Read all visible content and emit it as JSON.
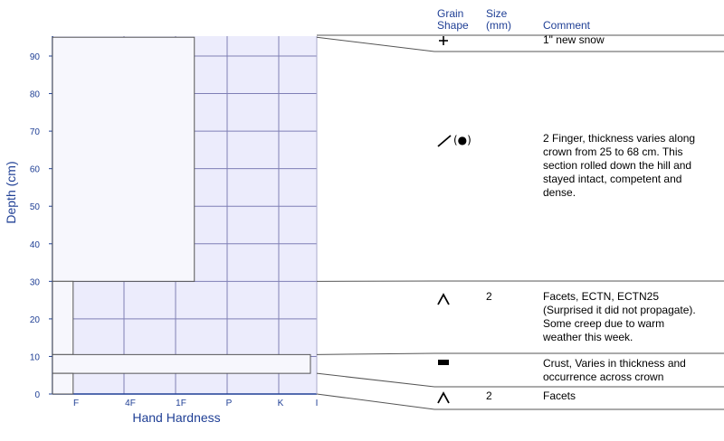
{
  "chart_data": {
    "type": "snow-profile",
    "xlabel": "Hand Hardness",
    "ylabel": "Depth (cm)",
    "ylim": [
      0,
      96
    ],
    "hardness_scale": [
      "F",
      "4F",
      "1F",
      "P",
      "K",
      "I"
    ],
    "y_ticks": [
      0,
      10,
      20,
      30,
      40,
      50,
      60,
      70,
      80,
      90
    ],
    "grid": true,
    "layers": [
      {
        "top": 95,
        "bottom": 30,
        "hardness": "1F-",
        "hardness_value": 2.75,
        "grain_shape": "new-snow",
        "size": "",
        "comment": [
          "1\" new snow"
        ]
      },
      {
        "top": 95,
        "bottom": 30,
        "hardness": "1F-",
        "hardness_value": 2.75,
        "grain_shape": "rounds-in-facets",
        "size": "",
        "comment": [
          "2 Finger, thickness varies along",
          "crown from 25 to 68 cm. This",
          "section rolled down the hill and",
          "stayed intact, competent and",
          "dense."
        ]
      },
      {
        "top": 30,
        "bottom": 10.5,
        "hardness": "F+",
        "hardness_value": 0.4,
        "grain_shape": "facets",
        "size": "2",
        "comment": [
          "Facets, ECTN, ECTN25",
          "(Surprised it did not propagate).",
          "Some creep due to warm",
          "weather this week."
        ]
      },
      {
        "top": 10.5,
        "bottom": 5.5,
        "hardness": "K",
        "hardness_value": 5,
        "grain_shape": "crust",
        "size": "",
        "comment": [
          "Crust, Varies in thickness and",
          "occurrence across crown"
        ]
      },
      {
        "top": 5.5,
        "bottom": 0,
        "hardness": "F+",
        "hardness_value": 0.4,
        "grain_shape": "facets",
        "size": "2",
        "comment": [
          "Facets"
        ]
      }
    ]
  },
  "table_headers": {
    "grain_shape": [
      "Grain",
      "Shape"
    ],
    "size": [
      "Size",
      "(mm)"
    ],
    "comment": "Comment"
  },
  "colors": {
    "axis": "#1f3f95",
    "grid": "#7f7fb5",
    "chart_bg": "#ececfc",
    "layer_fill": "#f7f7fd",
    "line": "#555555"
  }
}
